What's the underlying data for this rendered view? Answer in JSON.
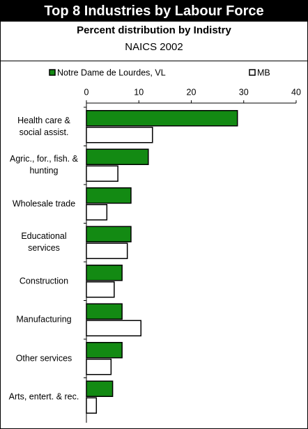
{
  "header": {
    "title": "Top 8 Industries by Labour Force",
    "subtitle": "Percent distribution by Indistry",
    "note": "NAICS 2002"
  },
  "chart_data": {
    "type": "hbar",
    "categories": [
      "Health care & social assist.",
      "Agric., for., fish. & hunting",
      "Wholesale trade",
      "Educational services",
      "Construction",
      "Manufacturing",
      "Other services",
      "Arts, entert. & rec."
    ],
    "series": [
      {
        "name": "Notre Dame de Lourdes, VL",
        "color": "#138a13",
        "values": [
          28.8,
          11.8,
          8.5,
          8.5,
          6.8,
          6.8,
          6.8,
          5.0
        ]
      },
      {
        "name": "MB",
        "color": "#ffffff",
        "values": [
          12.6,
          6.0,
          3.9,
          7.8,
          5.3,
          10.4,
          4.7,
          1.9
        ]
      }
    ],
    "xlim": [
      0,
      40
    ],
    "xticks": [
      0,
      10,
      20,
      30,
      40
    ]
  }
}
